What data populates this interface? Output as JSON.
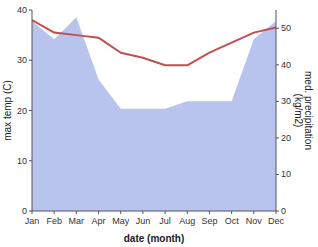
{
  "chart_data": {
    "type": "line",
    "xlabel": "date (month)",
    "ylabel": "max temp (C)",
    "y2label": "med. precipitation\n(kg/m2)",
    "categories": [
      "Jan",
      "Feb",
      "Mar",
      "Apr",
      "May",
      "Jun",
      "Jul",
      "Aug",
      "Sep",
      "Oct",
      "Nov",
      "Dec"
    ],
    "series": [
      {
        "type": "area",
        "axis": "y2",
        "color": "#b8c4ed",
        "values": [
          52,
          47,
          53,
          36,
          28,
          28,
          28,
          30,
          30,
          30,
          47,
          52
        ]
      },
      {
        "type": "line",
        "color": "#c0504d",
        "values": [
          38.0,
          35.5,
          35.0,
          34.5,
          31.5,
          30.5,
          29.0,
          29.0,
          31.5,
          33.5,
          35.5,
          36.5
        ]
      }
    ],
    "ylim": [
      0,
      40
    ],
    "yticks": [
      0,
      10,
      20,
      30,
      40
    ],
    "y2lim": [
      0,
      55
    ],
    "y2ticks": [
      0,
      10,
      20,
      30,
      40,
      50
    ],
    "grid": false
  }
}
